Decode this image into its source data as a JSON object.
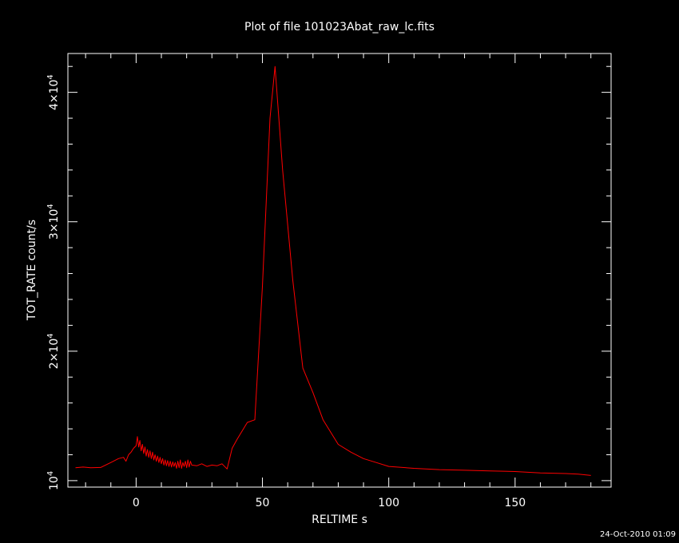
{
  "chart_data": {
    "type": "line",
    "title": "Plot of file 101023Abat_raw_lc.fits",
    "xlabel": "RELTIME  s",
    "ylabel": "TOT_RATE  count/s",
    "xlim": [
      -27,
      188
    ],
    "ylim": [
      9500,
      43000
    ],
    "x_ticks": [
      0,
      50,
      100,
      150
    ],
    "y_ticks": [
      {
        "value": 10000,
        "mant": "",
        "base": "10",
        "exp": "4"
      },
      {
        "value": 20000,
        "mant": "2×",
        "base": "10",
        "exp": "4"
      },
      {
        "value": 30000,
        "mant": "3×",
        "base": "10",
        "exp": "4"
      },
      {
        "value": 40000,
        "mant": "4×",
        "base": "10",
        "exp": "4"
      }
    ],
    "line_color": "#ff0000",
    "grid": false,
    "series": [
      {
        "x": [
          -24,
          -21,
          -18,
          -14,
          -10,
          -7,
          -5,
          -4,
          -3,
          -2,
          -1,
          0,
          0.5,
          1,
          1.5,
          2,
          2.5,
          3,
          3.5,
          4,
          4.5,
          5,
          5.5,
          6,
          6.5,
          7,
          7.5,
          8,
          8.5,
          9,
          9.5,
          10,
          10.5,
          11,
          11.5,
          12,
          12.5,
          13,
          13.5,
          14,
          14.5,
          15,
          15.5,
          16,
          16.5,
          17,
          17.5,
          18,
          18.5,
          19,
          19.5,
          20,
          20.5,
          21,
          21.5,
          22,
          24,
          26,
          28,
          30,
          32,
          34,
          36,
          38,
          40,
          44,
          47,
          50,
          53,
          55,
          58,
          62,
          66,
          70,
          74,
          80,
          85,
          90,
          95,
          100,
          110,
          120,
          130,
          140,
          150,
          160,
          170,
          175,
          180
        ],
        "y": [
          11000,
          11050,
          11000,
          11020,
          11400,
          11700,
          11800,
          11500,
          12000,
          12200,
          12500,
          12700,
          13400,
          12600,
          13100,
          12300,
          12800,
          12100,
          12600,
          11900,
          12400,
          11800,
          12300,
          11700,
          12200,
          11600,
          12000,
          11500,
          11900,
          11400,
          11800,
          11300,
          11700,
          11200,
          11600,
          11150,
          11550,
          11100,
          11500,
          11050,
          11450,
          11100,
          11400,
          10950,
          11500,
          11000,
          11600,
          10950,
          11400,
          11100,
          11500,
          11000,
          11600,
          11050,
          11500,
          11200,
          11150,
          11300,
          11100,
          11200,
          11150,
          11300,
          10900,
          12500,
          13200,
          14500,
          14700,
          25000,
          38000,
          42000,
          34000,
          25500,
          18700,
          16800,
          14700,
          12800,
          12200,
          11700,
          11400,
          11100,
          10950,
          10850,
          10800,
          10750,
          10700,
          10600,
          10550,
          10500,
          10400
        ]
      }
    ]
  },
  "footer": {
    "timestamp": "24-Oct-2010 01:09"
  }
}
